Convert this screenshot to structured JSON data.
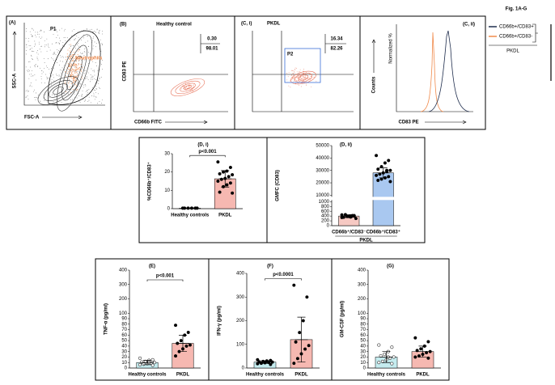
{
  "figure_label": "Fig. 1A-G",
  "flow_panels": [
    {
      "label": "(A)",
      "gate": "P1",
      "population": "Neutrophils",
      "xlabel": "FSC-A",
      "ylabel": "SSC-A"
    },
    {
      "label": "(B)",
      "title": "Healthy control",
      "xlabel": "CD66b FITC",
      "ylabel": "CD83 PE",
      "quadrant": [
        "0.30",
        "98.01"
      ]
    },
    {
      "label": "(C, i)",
      "title": "PKDL",
      "gate": "P2",
      "quadrant": [
        "16.34",
        "82.26"
      ]
    },
    {
      "label": "(C, ii)",
      "ylabel": "Counts",
      "inner_ylabel": "Normalized %",
      "xlabel": "CD83 PE",
      "legend": [
        {
          "name": "CD66b+/CD83+",
          "color": "#1f2d4d"
        },
        {
          "name": "CD66b+/CD83-",
          "color": "#f08a4b"
        }
      ],
      "legend_title": "PKDL"
    }
  ],
  "chart_data": [
    {
      "type": "bar",
      "panel": "(D, i)",
      "ylabel": "%CD66b⁺/CD83⁺",
      "categories": [
        "Healthy controls",
        "PKDL"
      ],
      "values": [
        0.3,
        16.3
      ],
      "errors": [
        0.1,
        4.5
      ],
      "colors": [
        "#ffffff",
        "#f6b8b1"
      ],
      "points": [
        [
          0.3,
          0.3,
          0.3,
          0.3,
          0.3,
          0.3
        ],
        [
          25.5,
          22.5,
          20.5,
          20,
          19,
          18.5,
          17.5,
          16.5,
          16,
          15,
          14,
          13,
          12,
          9,
          8.5
        ]
      ],
      "ylim": [
        0,
        30
      ],
      "yticks": [
        0,
        10,
        20,
        30
      ],
      "significance": "p<0.001"
    },
    {
      "type": "bar",
      "panel": "(D, ii)",
      "ylabel": "GMFC (CD83)",
      "categories": [
        "CD66b⁺/CD83⁻",
        "CD66b⁺/CD83⁺"
      ],
      "group": "PKDL",
      "values": [
        400,
        28000
      ],
      "errors": [
        60,
        4000
      ],
      "colors": [
        "#f6c9c3",
        "#a9c8f0"
      ],
      "points": [
        [
          450,
          420,
          400,
          380,
          350,
          300,
          420,
          380,
          460,
          340,
          400,
          360
        ],
        [
          42000,
          38000,
          36000,
          33000,
          31000,
          30000,
          29000,
          28000,
          27000,
          26000,
          25000,
          24000,
          23000,
          22000,
          21000,
          30000,
          28000
        ]
      ],
      "ylim": [
        0,
        50000
      ],
      "ybreak": [
        1000,
        10000
      ],
      "yticks": [
        0,
        200,
        400,
        600,
        800,
        1000,
        10000,
        20000,
        30000,
        40000,
        50000
      ]
    },
    {
      "type": "bar",
      "panel": "(E)",
      "ylabel": "TNF-α (pg/ml)",
      "categories": [
        "Healthy controls",
        "PKDL"
      ],
      "values": [
        10,
        45
      ],
      "errors": [
        4,
        15
      ],
      "colors": [
        "#c5ecef",
        "#f6b8b1"
      ],
      "point_styles": [
        "open",
        "filled"
      ],
      "points": [
        [
          18,
          15,
          14,
          12,
          11,
          10,
          9,
          8,
          7,
          6,
          5,
          10
        ],
        [
          78,
          65,
          60,
          50,
          45,
          42,
          40,
          35,
          30,
          22
        ]
      ],
      "ylim": [
        0,
        400
      ],
      "ybreak": 100,
      "yticks": [
        0,
        10,
        20,
        30,
        40,
        50,
        60,
        70,
        80,
        90,
        100,
        200,
        300,
        400
      ],
      "significance": "p<0.001"
    },
    {
      "type": "bar",
      "panel": "(F)",
      "ylabel": "IFN-γ (pg/ml)",
      "categories": [
        "Healthy controls",
        "PKDL"
      ],
      "values": [
        25,
        120
      ],
      "errors": [
        6,
        95
      ],
      "colors": [
        "#c5ecef",
        "#f6b8b1"
      ],
      "point_styles": [
        "filled",
        "filled"
      ],
      "points": [
        [
          35,
          32,
          30,
          28,
          26,
          25,
          24,
          22,
          20,
          18,
          15,
          28
        ],
        [
          350,
          300,
          200,
          150,
          110,
          95,
          80,
          60,
          40,
          20
        ]
      ],
      "ylim": [
        0,
        400
      ],
      "yticks": [
        0,
        100,
        200,
        300,
        400
      ],
      "significance": "p<0.0001"
    },
    {
      "type": "bar",
      "panel": "(G)",
      "ylabel": "GM-CSF (pg/ml)",
      "categories": [
        "Healthy controls",
        "PKDL"
      ],
      "values": [
        20,
        30
      ],
      "errors": [
        10,
        10
      ],
      "colors": [
        "#c5ecef",
        "#f6b8b1"
      ],
      "point_styles": [
        "open",
        "filled"
      ],
      "points": [
        [
          42,
          38,
          30,
          25,
          22,
          20,
          18,
          15,
          12,
          10,
          8,
          20
        ],
        [
          55,
          48,
          40,
          35,
          32,
          30,
          28,
          25,
          22,
          20,
          18
        ]
      ],
      "ylim": [
        0,
        400
      ],
      "ybreak": 100,
      "yticks": [
        0,
        10,
        20,
        30,
        40,
        50,
        60,
        70,
        80,
        90,
        100,
        200,
        300,
        400
      ]
    }
  ]
}
